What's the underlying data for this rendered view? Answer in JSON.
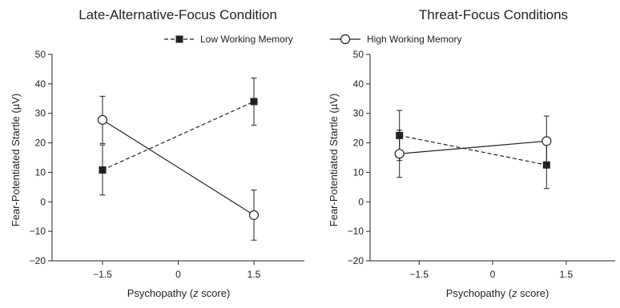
{
  "chart_data": [
    {
      "type": "line",
      "title": "Late-Alternative-Focus Condition",
      "xlabel_prefix": "Psychopathy (",
      "xlabel_italic": "z",
      "xlabel_suffix": " score)",
      "ylabel": "Fear-Potentiated Startle (µV)",
      "xlim": [
        -2.5,
        2.5
      ],
      "xticks": [
        -1.5,
        0,
        1.5
      ],
      "xtick_labels": [
        "−1.5",
        "0",
        "1.5"
      ],
      "ylim": [
        -20,
        50
      ],
      "yticks": [
        -20,
        -10,
        0,
        10,
        20,
        30,
        40,
        50
      ],
      "ytick_labels": [
        "−20",
        "−10",
        "0",
        "10",
        "20",
        "30",
        "40",
        "50"
      ],
      "grid": false,
      "series": [
        {
          "key": "low",
          "x": [
            -1.5,
            1.5
          ],
          "y": [
            10.8,
            34
          ],
          "err": [
            8.5,
            8
          ],
          "marker": "square",
          "line": "dashed"
        },
        {
          "key": "high",
          "x": [
            -1.5,
            1.5
          ],
          "y": [
            27.8,
            -4.5
          ],
          "err": [
            8,
            8.5
          ],
          "marker": "circle",
          "line": "solid"
        }
      ]
    },
    {
      "type": "line",
      "title": "Threat-Focus Conditions",
      "xlabel_prefix": "Psychopathy (",
      "xlabel_italic": "z",
      "xlabel_suffix": " score)",
      "ylabel": "Fear-Potentiated Startle (µV)",
      "xlim": [
        -2.5,
        2.5
      ],
      "xticks": [
        -1.5,
        0,
        1.5
      ],
      "xtick_labels": [
        "−1.5",
        "0",
        "1.5"
      ],
      "ylim": [
        -20,
        50
      ],
      "yticks": [
        -20,
        -10,
        0,
        10,
        20,
        30,
        40,
        50
      ],
      "ytick_labels": [
        "−20",
        "−10",
        "0",
        "10",
        "20",
        "30",
        "40",
        "50"
      ],
      "grid": false,
      "series": [
        {
          "key": "low",
          "x": [
            -1.9,
            1.1
          ],
          "y": [
            22.5,
            12.5
          ],
          "err": [
            8.5,
            8
          ],
          "marker": "square",
          "line": "dashed"
        },
        {
          "key": "high",
          "x": [
            -1.9,
            1.1
          ],
          "y": [
            16.3,
            20.6
          ],
          "err": [
            8,
            8.5
          ],
          "marker": "circle",
          "line": "solid"
        }
      ]
    }
  ],
  "legend": {
    "position": "top-center",
    "items": [
      {
        "label": "Low Working Memory",
        "marker": "square",
        "line": "dashed"
      },
      {
        "label": "High Working Memory",
        "marker": "circle",
        "line": "solid"
      }
    ]
  },
  "colors": {
    "ink": "#222222",
    "background": "#ffffff"
  }
}
